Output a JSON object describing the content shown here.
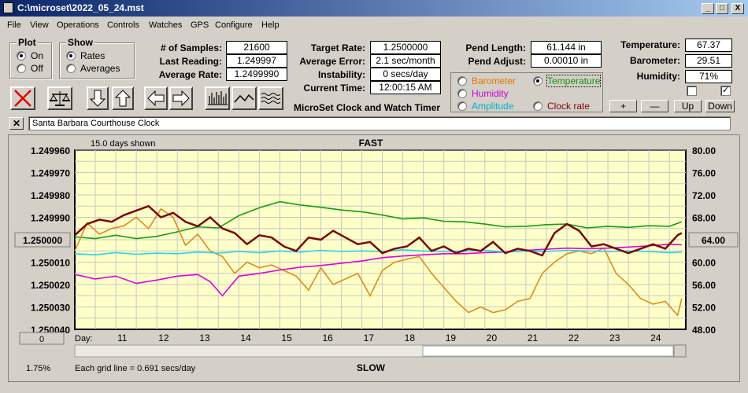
{
  "window": {
    "title": "C:\\microset\\2022_05_24.mst",
    "min": "_",
    "max": "□",
    "close": "X"
  },
  "menu": [
    "File",
    "View",
    "Operations",
    "Controls",
    "Watches",
    "GPS",
    "Configure",
    "Help"
  ],
  "plot": {
    "title": "Plot",
    "on": "On",
    "off": "Off",
    "selected": "On"
  },
  "show": {
    "title": "Show",
    "rates": "Rates",
    "averages": "Averages",
    "selected": "Rates"
  },
  "stats": {
    "samples_label": "# of Samples:",
    "samples": "21600",
    "last_label": "Last Reading:",
    "last": "1.249997",
    "avg_label": "Average Rate:",
    "avg": "1.2499990",
    "target_label": "Target Rate:",
    "target": "1.2500000",
    "avgerr_label": "Average Error:",
    "avgerr": "2.1 sec/month",
    "instab_label": "Instability:",
    "instab": "0 secs/day",
    "time_label": "Current Time:",
    "time": "12:00:15 AM",
    "pendlen_label": "Pend Length:",
    "pendlen": "61.144 in",
    "pendadj_label": "Pend Adjust:",
    "pendadj": "0.00010 in",
    "temp_label": "Temperature:",
    "temp": "67.37",
    "baro_label": "Barometer:",
    "baro": "29.51",
    "hum_label": "Humidity:",
    "hum": "71%"
  },
  "app_title": "MicroSet Clock and Watch Timer",
  "sensors": {
    "items": [
      {
        "label": "Barometer",
        "color": "#e07800"
      },
      {
        "label": "Temperature",
        "color": "#109010"
      },
      {
        "label": "Humidity",
        "color": "#d000d0"
      },
      {
        "label": "Amplitude",
        "color": "#00b0d0"
      },
      {
        "label": "Clock rate",
        "color": "#800000"
      }
    ],
    "selected": "Temperature"
  },
  "adjust_buttons": [
    "+",
    "—",
    "Up",
    "Down"
  ],
  "checkboxes": [
    false,
    true
  ],
  "clock_name": "Santa Barbara Courthouse Clock",
  "chart_data": {
    "type": "line",
    "top_label": "FAST",
    "bottom_label": "SLOW",
    "days_shown": "15.0 days shown",
    "grid_note": "Each grid line = 0.691 secs/day",
    "scale_pct": "1.75%",
    "offset_btn": "0",
    "left_axis_btn": "1.250000",
    "right_axis_btn": "64.00",
    "xlabel": "Day:",
    "x_ticks": [
      "11",
      "12",
      "13",
      "14",
      "15",
      "16",
      "17",
      "18",
      "19",
      "20",
      "21",
      "22",
      "23",
      "24"
    ],
    "x_range": [
      10.0,
      24.9
    ],
    "y_left_ticks": [
      "1.249960",
      "1.249970",
      "1.249980",
      "1.249990",
      "1.250000",
      "1.250010",
      "1.250020",
      "1.250030",
      "1.250040"
    ],
    "y_left_range": [
      1.24996,
      1.25004
    ],
    "y_right_ticks": [
      "80.00",
      "76.00",
      "72.00",
      "68.00",
      "64.00",
      "60.00",
      "56.00",
      "52.00",
      "48.00"
    ],
    "y_right_range": [
      80,
      48
    ],
    "series": [
      {
        "name": "Temperature",
        "color": "#10a010",
        "x": [
          10.0,
          10.5,
          11.0,
          11.5,
          12.0,
          12.5,
          13.0,
          13.5,
          14.0,
          14.5,
          15.0,
          15.5,
          16.0,
          16.5,
          17.0,
          17.5,
          18.0,
          18.5,
          19.0,
          19.5,
          20.0,
          20.5,
          21.0,
          21.5,
          22.0,
          22.5,
          23.0,
          23.5,
          24.0,
          24.5,
          24.8
        ],
        "y": [
          64.5,
          64.2,
          64.8,
          64.2,
          64.6,
          65.4,
          66.3,
          66.1,
          68.3,
          69.7,
          70.8,
          70.2,
          69.8,
          69.3,
          69.0,
          68.4,
          67.7,
          67.9,
          67.3,
          67.2,
          66.8,
          66.3,
          66.4,
          66.7,
          66.8,
          66.1,
          66.4,
          66.2,
          66.5,
          66.4,
          67.2
        ]
      },
      {
        "name": "Barometer",
        "color": "#e08a1c",
        "x": [
          10.0,
          10.3,
          10.6,
          10.9,
          11.2,
          11.5,
          11.8,
          12.1,
          12.4,
          12.7,
          13.0,
          13.3,
          13.6,
          13.9,
          14.2,
          14.5,
          14.8,
          15.1,
          15.4,
          15.7,
          16.0,
          16.3,
          16.6,
          16.9,
          17.2,
          17.5,
          17.8,
          18.1,
          18.4,
          18.7,
          19.0,
          19.3,
          19.6,
          19.9,
          20.2,
          20.5,
          20.8,
          21.1,
          21.4,
          21.7,
          22.0,
          22.3,
          22.6,
          22.9,
          23.2,
          23.5,
          23.8,
          24.1,
          24.4,
          24.7,
          24.8
        ],
        "y": [
          62.0,
          67.0,
          65.0,
          66.0,
          66.5,
          68.0,
          66.0,
          69.5,
          68.0,
          63.0,
          65.0,
          62.0,
          61.0,
          58.0,
          60.0,
          59.0,
          59.5,
          58.5,
          57.5,
          55.0,
          59.0,
          56.0,
          57.0,
          58.0,
          54.0,
          58.5,
          60.0,
          60.5,
          61.0,
          58.0,
          55.5,
          53.0,
          51.0,
          52.0,
          51.0,
          51.5,
          53.0,
          53.5,
          58.0,
          60.0,
          61.5,
          62.0,
          61.5,
          62.5,
          58.0,
          56.0,
          53.5,
          52.5,
          53.0,
          50.5,
          53.5
        ]
      },
      {
        "name": "Humidity",
        "color": "#e000e0",
        "x": [
          10.0,
          10.5,
          11.0,
          11.5,
          12.0,
          12.5,
          13.0,
          13.3,
          13.6,
          14.0,
          14.5,
          15.0,
          15.5,
          16.0,
          16.5,
          17.0,
          17.5,
          18.0,
          18.5,
          19.0,
          19.5,
          20.0,
          20.5,
          21.0,
          21.5,
          22.0,
          22.5,
          23.0,
          23.5,
          24.0,
          24.5,
          24.8
        ],
        "y": [
          57.8,
          57.0,
          57.5,
          56.2,
          56.8,
          57.5,
          57.8,
          56.5,
          54.0,
          57.5,
          58.0,
          58.6,
          59.1,
          59.4,
          59.8,
          60.2,
          60.8,
          61.1,
          61.3,
          61.5,
          61.5,
          61.7,
          61.8,
          62.1,
          62.3,
          62.5,
          62.4,
          62.5,
          62.7,
          62.9,
          63.2,
          63.1
        ]
      },
      {
        "name": "Amplitude",
        "color": "#20d8e8",
        "x": [
          10.0,
          10.5,
          11.0,
          11.5,
          12.0,
          12.5,
          13.0,
          13.5,
          14.0,
          14.5,
          15.0,
          15.5,
          16.0,
          16.5,
          17.0,
          17.5,
          18.0,
          18.5,
          19.0,
          19.5,
          20.0,
          20.5,
          21.0,
          21.5,
          22.0,
          22.5,
          23.0,
          23.5,
          24.0,
          24.5,
          24.8
        ],
        "y": [
          61.5,
          61.3,
          61.7,
          61.4,
          61.6,
          61.5,
          61.8,
          61.6,
          61.9,
          61.7,
          62.0,
          61.8,
          62.1,
          61.9,
          62.0,
          61.9,
          62.2,
          62.0,
          61.9,
          62.0,
          62.1,
          61.8,
          62.0,
          61.9,
          62.1,
          62.0,
          61.9,
          62.0,
          61.9,
          61.7,
          61.8
        ]
      },
      {
        "name": "Clock rate",
        "color": "#7a0808",
        "x": [
          10.0,
          10.3,
          10.6,
          10.9,
          11.2,
          11.5,
          11.8,
          12.1,
          12.4,
          12.7,
          13.0,
          13.3,
          13.6,
          13.9,
          14.2,
          14.5,
          14.8,
          15.1,
          15.4,
          15.7,
          16.0,
          16.3,
          16.6,
          16.9,
          17.2,
          17.5,
          17.8,
          18.1,
          18.4,
          18.7,
          19.0,
          19.3,
          19.6,
          19.9,
          20.2,
          20.5,
          20.8,
          21.1,
          21.4,
          21.7,
          22.0,
          22.3,
          22.6,
          22.9,
          23.2,
          23.5,
          23.8,
          24.1,
          24.4,
          24.7,
          24.8
        ],
        "y": [
          1.249998,
          1.249993,
          1.249991,
          1.249992,
          1.249989,
          1.249987,
          1.249985,
          1.24999,
          1.249988,
          1.249992,
          1.249994,
          1.24999,
          1.249995,
          1.249997,
          1.250002,
          1.249998,
          1.249999,
          1.250003,
          1.250005,
          1.249999,
          1.25,
          1.249996,
          1.249999,
          1.250002,
          1.250001,
          1.250006,
          1.250004,
          1.250003,
          1.249999,
          1.250005,
          1.250003,
          1.250006,
          1.250004,
          1.250005,
          1.250001,
          1.250006,
          1.250004,
          1.250005,
          1.250007,
          1.249997,
          1.249993,
          1.249996,
          1.250003,
          1.250002,
          1.250004,
          1.250006,
          1.250004,
          1.250002,
          1.250004,
          1.249998,
          1.249997
        ]
      }
    ]
  }
}
